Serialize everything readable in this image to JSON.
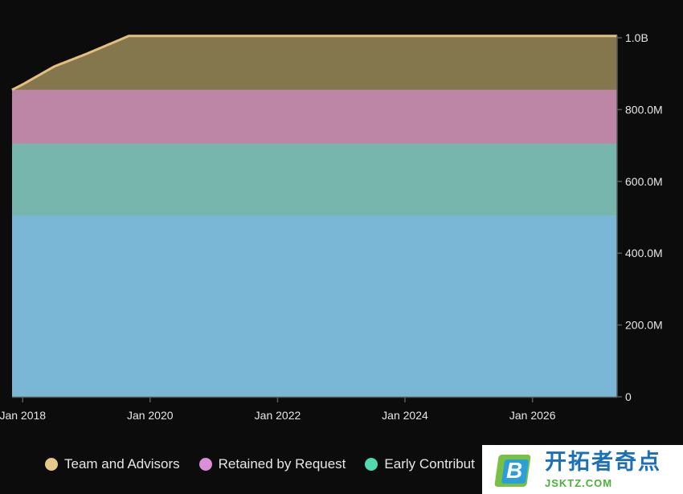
{
  "chart_data": {
    "type": "area",
    "stacked": true,
    "x_ticks": [
      "Jan 2018",
      "Jan 2020",
      "Jan 2022",
      "Jan 2024",
      "Jan 2026"
    ],
    "y_ticks": [
      "0",
      "200.0M",
      "400.0M",
      "600.0M",
      "800.0M",
      "1.0B"
    ],
    "ylim": [
      0,
      1000000000
    ],
    "xlim": [
      "2017-11-01",
      "2027-05-01"
    ],
    "y_axis_position": "right",
    "legend_position": "bottom",
    "series": [
      {
        "name": "Early Contribut",
        "color": "#7ab7d6",
        "values": [
          {
            "x": "2017-11-01",
            "y": 505000000
          },
          {
            "x": "2027-05-01",
            "y": 505000000
          }
        ]
      },
      {
        "color": "#76b6ad",
        "values": [
          {
            "x": "2017-11-01",
            "y": 200000000
          },
          {
            "x": "2027-05-01",
            "y": 200000000
          }
        ]
      },
      {
        "name": "Retained by Request",
        "color": "#bd86a6",
        "values": [
          {
            "x": "2017-11-01",
            "y": 150000000
          },
          {
            "x": "2027-05-01",
            "y": 150000000
          }
        ]
      },
      {
        "name": "Team and Advisors",
        "color": "#85774d",
        "line_color": "#e5c07b",
        "values": [
          {
            "x": "2017-11-01",
            "y": 0
          },
          {
            "x": "2018-01-01",
            "y": 15000000
          },
          {
            "x": "2018-07-01",
            "y": 65000000
          },
          {
            "x": "2019-01-01",
            "y": 100000000
          },
          {
            "x": "2019-09-01",
            "y": 150000000
          },
          {
            "x": "2027-05-01",
            "y": 150000000
          }
        ]
      }
    ]
  },
  "legend": [
    {
      "label": "Team and Advisors",
      "color": "#e5c98a"
    },
    {
      "label": "Retained by Request",
      "color": "#d98fd9"
    },
    {
      "label": "Early Contribut",
      "color": "#52d9b0"
    }
  ],
  "watermark": {
    "logo_letter": "B",
    "cn_text": "开拓者奇点",
    "url": "JSKTZ.COM"
  }
}
